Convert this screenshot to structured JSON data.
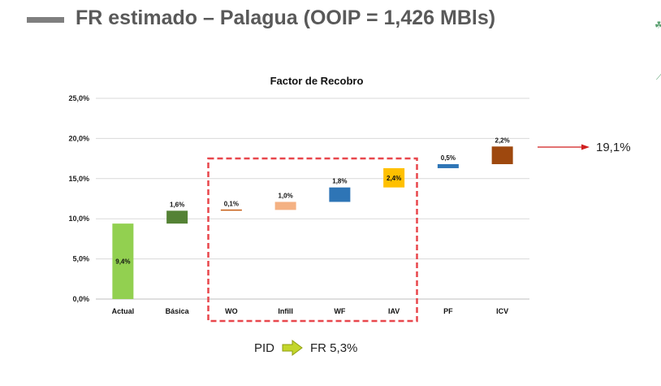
{
  "slide": {
    "title": "FR estimado – Palagua  (OOIP = 1,426 MBls)",
    "total_callout": "19,1%",
    "pid_label": "PID",
    "fr_label": "FR 5,3%"
  },
  "chart_data": {
    "type": "bar",
    "subtype": "waterfall",
    "title": "Factor de Recobro",
    "xlabel": "",
    "ylabel": "",
    "ylim": [
      0,
      25
    ],
    "yticks": [
      "0,0%",
      "5,0%",
      "10,0%",
      "15,0%",
      "20,0%",
      "25,0%"
    ],
    "grid": true,
    "categories": [
      "Actual",
      "Básica",
      "WO",
      "Infill",
      "WF",
      "IAV",
      "PF",
      "ICV"
    ],
    "values": [
      9.4,
      1.6,
      0.1,
      1.0,
      1.8,
      2.4,
      0.5,
      2.2
    ],
    "bases": [
      0,
      9.4,
      11.0,
      11.1,
      12.1,
      13.9,
      16.3,
      16.8
    ],
    "data_labels": [
      "9,4%",
      "1,6%",
      "0,1%",
      "1,0%",
      "1,8%",
      "2,4%",
      "0,5%",
      "2,2%"
    ],
    "colors": [
      "#92d050",
      "#548235",
      "#c55a11",
      "#f4b183",
      "#2e75b6",
      "#ffc000",
      "#2e75b6",
      "#9e480e"
    ],
    "highlight_group": [
      "WO",
      "Infill",
      "WF",
      "IAV"
    ],
    "highlight_color": "#e8474c"
  }
}
